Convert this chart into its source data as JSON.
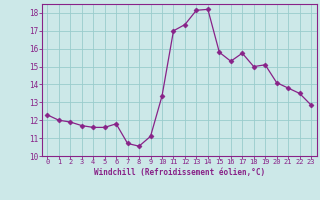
{
  "x": [
    0,
    1,
    2,
    3,
    4,
    5,
    6,
    7,
    8,
    9,
    10,
    11,
    12,
    13,
    14,
    15,
    16,
    17,
    18,
    19,
    20,
    21,
    22,
    23
  ],
  "y": [
    12.3,
    12.0,
    11.9,
    11.7,
    11.6,
    11.6,
    11.8,
    10.7,
    10.55,
    11.1,
    13.35,
    17.0,
    17.35,
    18.15,
    18.2,
    15.8,
    15.3,
    15.75,
    15.0,
    15.1,
    14.1,
    13.8,
    13.5,
    12.85
  ],
  "xlabel": "Windchill (Refroidissement éolien,°C)",
  "ylim": [
    10,
    18.5
  ],
  "xlim": [
    -0.5,
    23.5
  ],
  "yticks": [
    10,
    11,
    12,
    13,
    14,
    15,
    16,
    17,
    18
  ],
  "xticks": [
    0,
    1,
    2,
    3,
    4,
    5,
    6,
    7,
    8,
    9,
    10,
    11,
    12,
    13,
    14,
    15,
    16,
    17,
    18,
    19,
    20,
    21,
    22,
    23
  ],
  "xtick_labels": [
    "0",
    "1",
    "2",
    "3",
    "4",
    "5",
    "6",
    "7",
    "8",
    "9",
    "10",
    "11",
    "12",
    "13",
    "14",
    "15",
    "16",
    "17",
    "18",
    "19",
    "20",
    "21",
    "22",
    "23"
  ],
  "line_color": "#882288",
  "marker": "D",
  "marker_size": 2.5,
  "bg_color": "#cce8e8",
  "grid_color": "#99cccc",
  "axis_color": "#882288",
  "tick_color": "#882288",
  "xlabel_color": "#882288"
}
